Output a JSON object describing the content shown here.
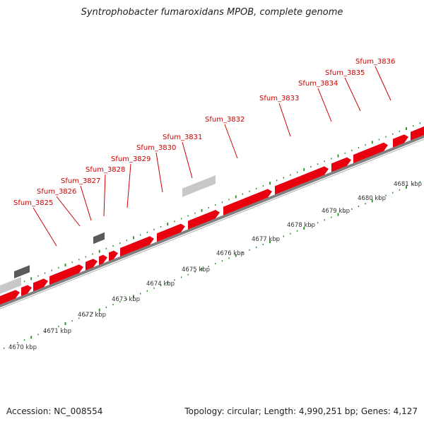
{
  "title": "Syntrophobacter fumaroxidans MPOB, complete genome",
  "footer": {
    "accession": "Accession: NC_008554",
    "summary": "Topology: circular; Length: 4,990,251 bp; Genes: 4,127"
  },
  "colors": {
    "cds_forward": "#e8000f",
    "other_feature": "#c8c8c8",
    "dark_feature": "#5a5a5a",
    "gene_label": "#cc0000",
    "tick": "#2a8a2a",
    "backbone": "#808080"
  },
  "gene_labels": [
    "Sfum_3825",
    "Sfum_3826",
    "Sfum_3827",
    "Sfum_3828",
    "Sfum_3829",
    "Sfum_3830",
    "Sfum_3831",
    "Sfum_3832",
    "Sfum_3833",
    "Sfum_3834",
    "Sfum_3835",
    "Sfum_3836"
  ],
  "scale_labels": [
    "4670 kbp",
    "4671 kbp",
    "4672 kbp",
    "4673 kbp",
    "4674 kbp",
    "4675 kbp",
    "4676 kbp",
    "4677 kbp",
    "4678 kbp",
    "4679 kbp",
    "4680 kbp",
    "4681 kbp"
  ]
}
